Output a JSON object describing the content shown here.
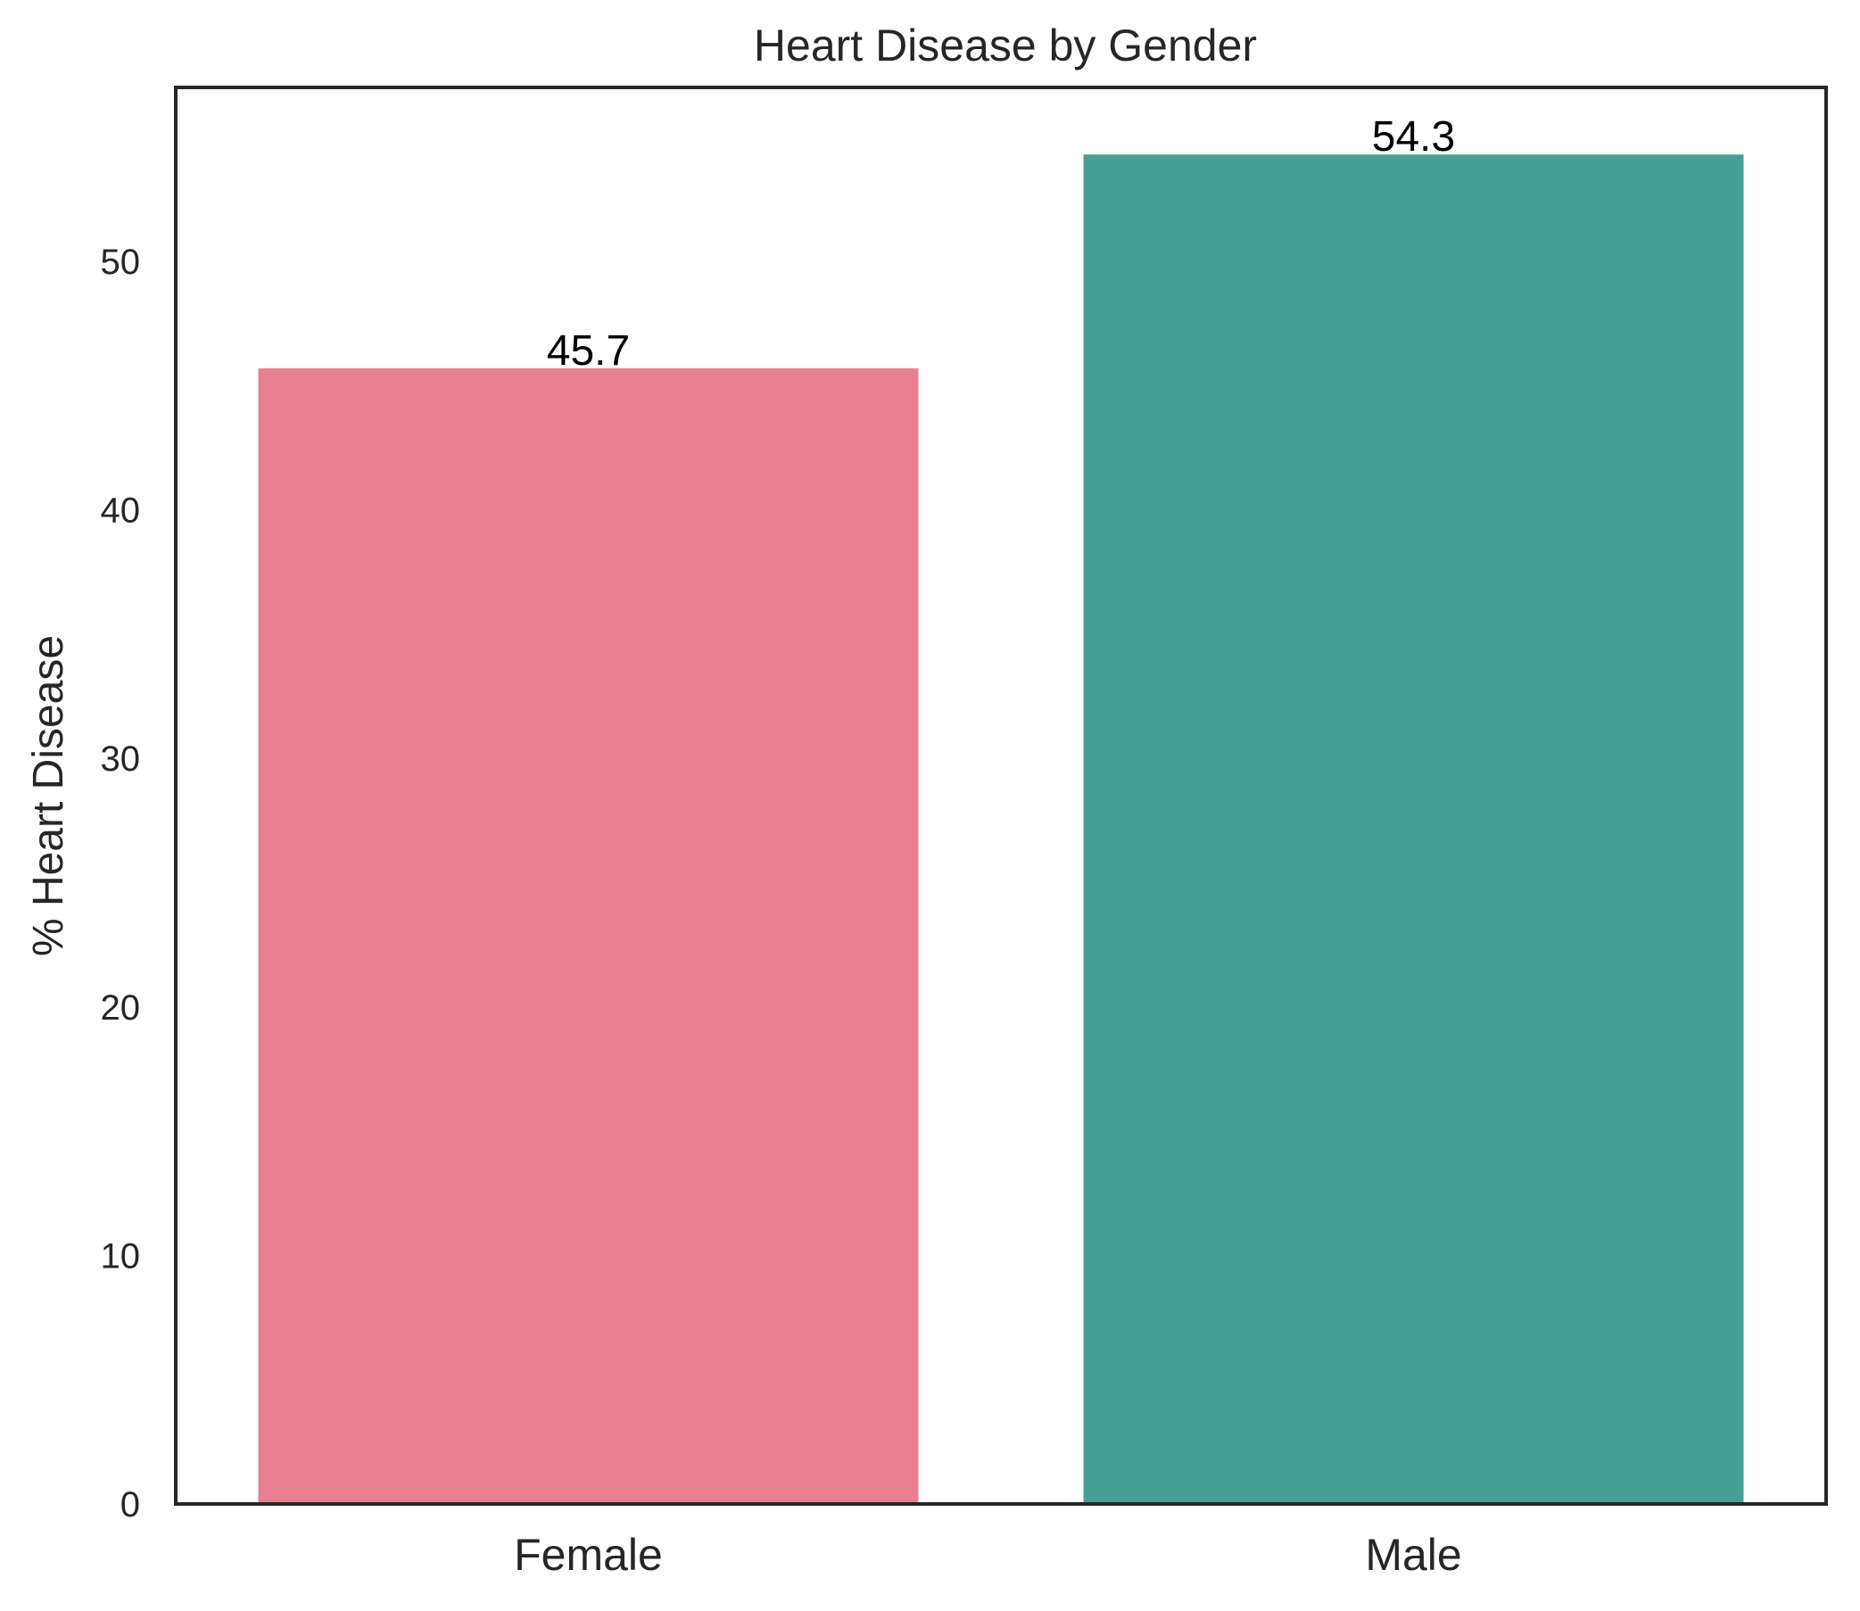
{
  "chart_data": {
    "type": "bar",
    "title": "Heart Disease by Gender",
    "xlabel": "",
    "ylabel": "% Heart Disease",
    "categories": [
      "Female",
      "Male"
    ],
    "values": [
      45.7,
      54.3
    ],
    "value_labels": [
      "45.7",
      "54.3"
    ],
    "colors": [
      "#e77f91",
      "#479e98"
    ],
    "ylim": [
      0,
      57.0
    ],
    "yticks": [
      0,
      10,
      20,
      30,
      40,
      50
    ],
    "ytick_labels": [
      "0",
      "10",
      "20",
      "30",
      "40",
      "50"
    ],
    "grid": false,
    "legend": "none"
  }
}
